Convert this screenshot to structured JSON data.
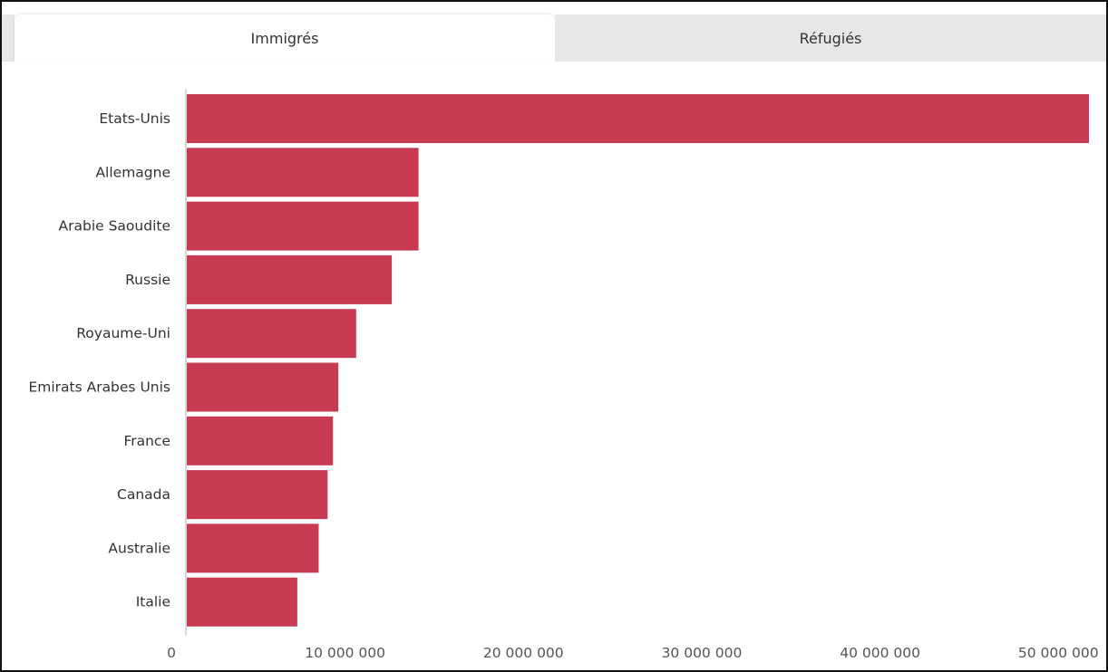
{
  "tabs": [
    {
      "label": "Immigrés",
      "active": true
    },
    {
      "label": "Réfugiés",
      "active": false
    }
  ],
  "colors": {
    "bar": "#c83a52",
    "axis": "#b0b0b0",
    "tab_active_bg": "#ffffff",
    "tab_inactive_bg": "#e7e7e7"
  },
  "chart_data": {
    "type": "bar",
    "orientation": "horizontal",
    "categories": [
      "Etats-Unis",
      "Allemagne",
      "Arabie Saoudite",
      "Russie",
      "Royaume-Uni",
      "Emirats Arabes Unis",
      "France",
      "Canada",
      "Australie",
      "Italie"
    ],
    "values": [
      50700000,
      13100000,
      13100000,
      11600000,
      9600000,
      8600000,
      8300000,
      8000000,
      7500000,
      6300000
    ],
    "xlim": [
      0,
      50700000
    ],
    "xticks": [
      0,
      10000000,
      20000000,
      30000000,
      40000000,
      50000000
    ],
    "xtick_labels": [
      "0",
      "10 000 000",
      "20 000 000",
      "30 000 000",
      "40 000 000",
      "50 000 000"
    ],
    "title": "",
    "xlabel": "",
    "ylabel": "",
    "grid": false,
    "legend": "none"
  }
}
